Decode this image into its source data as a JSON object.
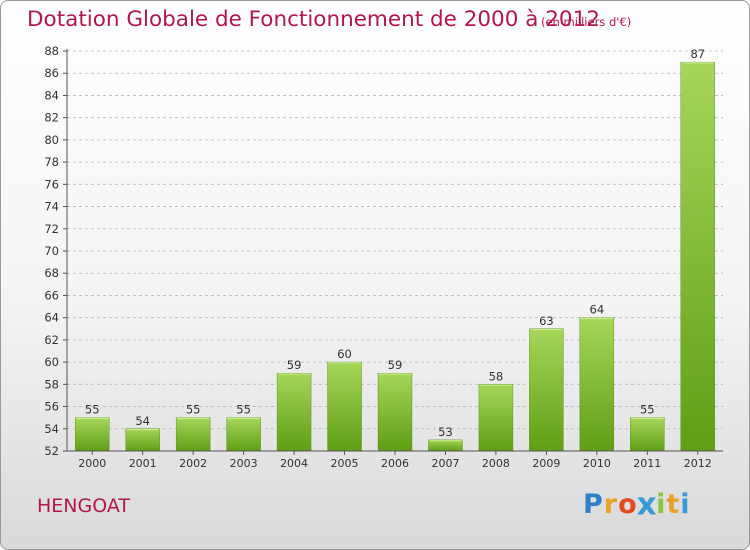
{
  "title": "Dotation Globale de Fonctionnement de 2000 à 2012",
  "subtitle": "(en milliers d'€)",
  "commune": "HENGOAT",
  "logo": {
    "letters": [
      "P",
      "r",
      "o",
      "x",
      "i",
      "t",
      "i"
    ],
    "colors": [
      "#2f7fc9",
      "#e8a22a",
      "#e34a1f",
      "#3a9ad9",
      "#8bc43f",
      "#e8a22a",
      "#3a9ad9"
    ]
  },
  "colors": {
    "title": "#b5164b",
    "bar_light": "#a6d65a",
    "bar_dark": "#5f9e15",
    "grid": "#b8b8b8",
    "axis_text": "#333333"
  },
  "chart_data": {
    "type": "bar",
    "categories": [
      "2000",
      "2001",
      "2002",
      "2003",
      "2004",
      "2005",
      "2006",
      "2007",
      "2008",
      "2009",
      "2010",
      "2011",
      "2012"
    ],
    "values": [
      55,
      54,
      55,
      55,
      59,
      60,
      59,
      53,
      58,
      63,
      64,
      55,
      87
    ],
    "data_labels": [
      "55",
      "54",
      "55",
      "55",
      "59",
      "60",
      "59",
      "53",
      "58",
      "63",
      "64",
      "55",
      "87"
    ],
    "title": "Dotation Globale de Fonctionnement de 2000 à 2012",
    "xlabel": "",
    "ylabel": "",
    "ylim": [
      52,
      88
    ],
    "yticks": [
      52,
      54,
      56,
      58,
      60,
      62,
      64,
      66,
      68,
      70,
      72,
      74,
      76,
      78,
      80,
      82,
      84,
      86,
      88
    ],
    "grid": true,
    "legend": "none"
  }
}
